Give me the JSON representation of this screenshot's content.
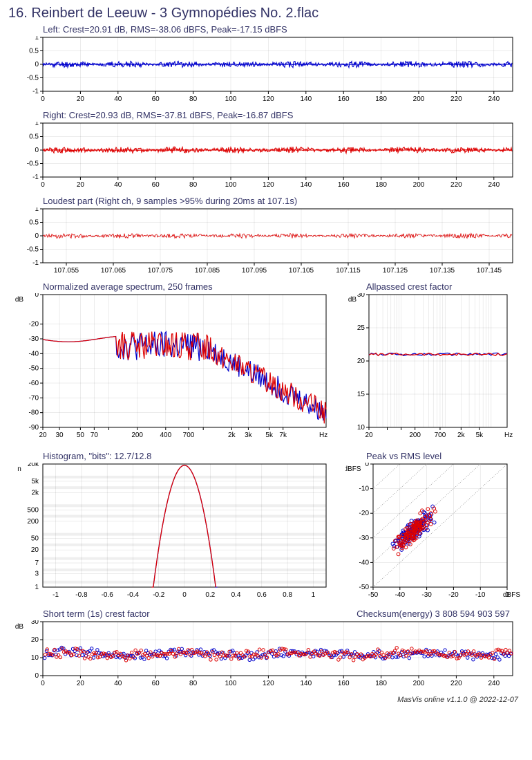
{
  "title": "16. Reinbert de Leeuw - 3 Gymnopédies No. 2.flac",
  "footer": "MasVis online v1.1.0 @ 2022-12-07",
  "colors": {
    "left": "#0000cc",
    "right": "#dd0000",
    "axis": "#000000",
    "grid": "#000000",
    "text": "#333366"
  },
  "waveform_left": {
    "title": "Left: Crest=20.91 dB, RMS=-38.06 dBFS, Peak=-17.15 dBFS",
    "xlim": [
      0,
      250
    ],
    "ylim": [
      -1,
      1
    ],
    "xticks": [
      0,
      20,
      40,
      60,
      80,
      100,
      120,
      140,
      160,
      180,
      200,
      220,
      240
    ],
    "yticks": [
      -1,
      -0.5,
      0,
      0.5,
      1
    ],
    "color": "#0000cc",
    "amplitude": 0.12
  },
  "waveform_right": {
    "title": "Right: Crest=20.93 dB, RMS=-37.81 dBFS, Peak=-16.87 dBFS",
    "xlim": [
      0,
      250
    ],
    "ylim": [
      -1,
      1
    ],
    "xticks": [
      0,
      20,
      40,
      60,
      80,
      100,
      120,
      140,
      160,
      180,
      200,
      220,
      240
    ],
    "yticks": [
      -1,
      -0.5,
      0,
      0.5,
      1
    ],
    "color": "#dd0000",
    "amplitude": 0.12
  },
  "loudest": {
    "title": "Loudest part (Right ch, 9 samples >95% during 20ms at 107.1s)",
    "xlim": [
      107.05,
      107.15
    ],
    "ylim": [
      -1,
      1
    ],
    "xticks": [
      107.055,
      107.065,
      107.075,
      107.085,
      107.095,
      107.105,
      107.115,
      107.125,
      107.135,
      107.145
    ],
    "yticks": [
      -1,
      -0.5,
      0,
      0.5,
      1
    ],
    "color": "#dd0000",
    "amplitude": 0.09
  },
  "spectrum": {
    "title": "Normalized average spectrum, 250 frames",
    "xlim_log": [
      20,
      20000
    ],
    "ylim": [
      -90,
      0
    ],
    "xlabel": "Hz",
    "ylabel": "dB",
    "xticks": [
      20,
      30,
      50,
      70,
      100,
      200,
      400,
      700,
      1000,
      2000,
      3000,
      5000,
      7000
    ],
    "xtick_labels": [
      "20",
      "30",
      "50",
      "70",
      "",
      "200",
      "400",
      "700",
      "",
      "2k",
      "3k",
      "5k",
      "7k"
    ],
    "yticks": [
      -90,
      -80,
      -70,
      -60,
      -50,
      -40,
      -30,
      -20,
      0
    ],
    "colors": [
      "#0000cc",
      "#dd0000"
    ]
  },
  "allpass": {
    "title": "Allpassed crest factor",
    "xlim_log": [
      20,
      20000
    ],
    "ylim": [
      10,
      30
    ],
    "xlabel": "Hz",
    "ylabel": "dB",
    "xticks": [
      20,
      50,
      100,
      200,
      700,
      2000,
      5000
    ],
    "xtick_labels": [
      "20",
      "",
      "",
      "200",
      "700",
      "2k",
      "5k"
    ],
    "yticks": [
      10,
      15,
      20,
      25,
      30
    ],
    "value": 21,
    "colors": [
      "#0000cc",
      "#dd0000"
    ]
  },
  "histogram": {
    "title": "Histogram, \"bits\": 12.7/12.8",
    "xlim": [
      -1.1,
      1.1
    ],
    "ylabel": "n",
    "xticks": [
      -1,
      -0.8,
      -0.6,
      -0.4,
      -0.2,
      0,
      0.2,
      0.4,
      0.6,
      0.8,
      1
    ],
    "yticks_log": [
      1,
      3,
      7,
      20,
      50,
      200,
      500,
      2000,
      5000,
      20000
    ],
    "ytick_labels": [
      "1",
      "3",
      "7",
      "20",
      "50",
      "200",
      "500",
      "2k",
      "5k",
      "20k"
    ],
    "colors": [
      "#0000cc",
      "#dd0000"
    ]
  },
  "peak_rms": {
    "title": "Peak vs RMS level",
    "xlim": [
      -50,
      0
    ],
    "ylim": [
      -50,
      0
    ],
    "xlabel": "dBFS",
    "ylabel": "dBFS",
    "xticks": [
      -50,
      -40,
      -30,
      -20,
      -10,
      0
    ],
    "yticks": [
      -50,
      -40,
      -30,
      -20,
      -10,
      0
    ],
    "colors": [
      "#0000cc",
      "#dd0000"
    ],
    "cluster_center": [
      -35,
      -27
    ],
    "cluster_spread": 7
  },
  "short_crest": {
    "title": "Short term (1s) crest factor",
    "checksum_label": "Checksum(energy) 3 808 594 903 597",
    "xlim": [
      0,
      250
    ],
    "ylim": [
      0,
      30
    ],
    "ylabel": "dB",
    "xticks": [
      0,
      20,
      40,
      60,
      80,
      100,
      120,
      140,
      160,
      180,
      200,
      220,
      240
    ],
    "yticks": [
      0,
      10,
      20,
      30
    ],
    "colors": [
      "#0000cc",
      "#dd0000"
    ],
    "mean": 12,
    "spread": 3
  }
}
